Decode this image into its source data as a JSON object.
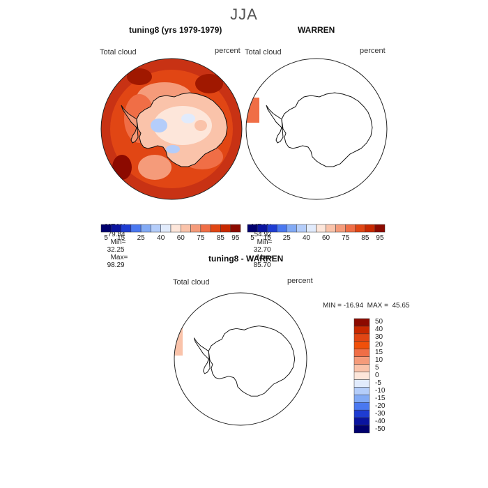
{
  "season": "JJA",
  "panel1": {
    "title": "tuning8 (yrs 1979-1979)",
    "variable": "Total cloud",
    "units": "percent",
    "stats": {
      "mean_label": "MEAN=",
      "mean": "79.84",
      "min_label": "Min=",
      "min": "32.25",
      "max_label": "Max=",
      "max": "98.29"
    }
  },
  "panel2": {
    "title": "WARREN",
    "variable": "Total cloud",
    "units": "percent",
    "stats": {
      "mean_label": "MEAN=",
      "mean": "54.92",
      "min_label": "Min=",
      "min": "32.70",
      "max_label": "Max=",
      "max": "85.70"
    }
  },
  "panel3": {
    "title": "tuning8 - WARREN",
    "variable": "Total cloud",
    "units": "percent",
    "minmax": "MIN = -16.94  MAX =  45.65"
  },
  "colorbar_abs": {
    "ticks": [
      "5",
      "15",
      "25",
      "40",
      "60",
      "75",
      "85",
      "95"
    ],
    "colors": [
      "#00006e",
      "#0a14a0",
      "#1e3cd2",
      "#4a78f0",
      "#82aaf5",
      "#b4cdfa",
      "#e1ebfc",
      "#fde6da",
      "#fac3aa",
      "#f59b7a",
      "#f06e46",
      "#e14614",
      "#c82800",
      "#8c0a00"
    ]
  },
  "colorbar_diff": {
    "ticks": [
      "50",
      "40",
      "30",
      "20",
      "15",
      "10",
      "5",
      "0",
      "-5",
      "-10",
      "-15",
      "-20",
      "-30",
      "-40",
      "-50"
    ],
    "colors": [
      "#8c0a00",
      "#c82800",
      "#e14614",
      "#f0500a",
      "#f06e46",
      "#f59b7a",
      "#fac3aa",
      "#fde6da",
      "#e1ebfc",
      "#b4cdfa",
      "#82aaf5",
      "#4a78f0",
      "#1e3cd2",
      "#0a14a0",
      "#00006e"
    ]
  }
}
